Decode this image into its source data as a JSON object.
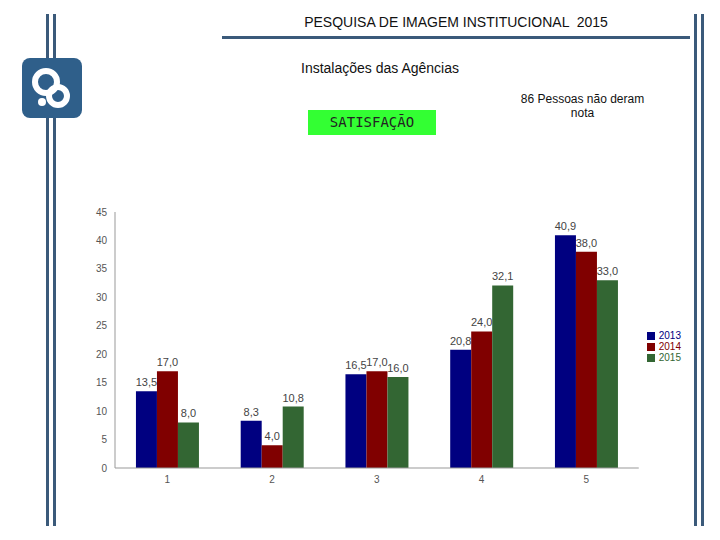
{
  "chart_data": {
    "type": "bar",
    "title": "PESQUISA DE IMAGEM INSTITUCIONAL  2015",
    "subtitle": "Instalações das Agências",
    "annotations": [
      "SATISFAÇÃO",
      "86 Pessoas não deram nota"
    ],
    "categories": [
      "1",
      "2",
      "3",
      "4",
      "5"
    ],
    "series": [
      {
        "name": "2013",
        "color": "#000080",
        "values": [
          13.5,
          8.3,
          16.5,
          20.8,
          40.9
        ],
        "value_labels": [
          "13,5",
          "8,3",
          "16,5",
          "20,8",
          "40,9"
        ]
      },
      {
        "name": "2014",
        "color": "#800000",
        "values": [
          17.0,
          4.0,
          17.0,
          24.0,
          38.0
        ],
        "value_labels": [
          "17,0",
          "4,0",
          "17,0",
          "24,0",
          "38,0"
        ]
      },
      {
        "name": "2015",
        "color": "#336633",
        "values": [
          8.0,
          10.8,
          16.0,
          32.1,
          33.0
        ],
        "value_labels": [
          "8,0",
          "10,8",
          "16,0",
          "32,1",
          "33,0"
        ]
      }
    ],
    "ylim": [
      0,
      45
    ],
    "yticks": [
      0,
      5,
      10,
      15,
      20,
      25,
      30,
      35,
      40,
      45
    ],
    "grid": false,
    "legend": "right",
    "data_labels": true
  }
}
